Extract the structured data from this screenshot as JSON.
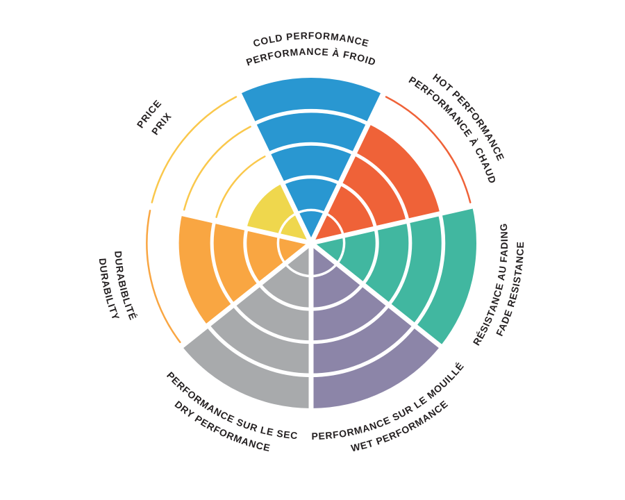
{
  "page": {
    "background": "#FFFFFF"
  },
  "chart_data": {
    "type": "radial-wheel",
    "description": "Seven-segment circular performance rating wheel, each segment filled 0-5 rings, bilingual curved labels",
    "rings": 5,
    "ring_outline_for_unfilled": true,
    "separator_color": "#FFFFFF",
    "text_color": "#231F20",
    "segments_clockwise_from_top": [
      {
        "id": "cold-performance",
        "label_en": "COLD PERFORMANCE",
        "label_fr": "PERFORMANCE À FROID",
        "value": 5,
        "fill": "#2997D1"
      },
      {
        "id": "hot-performance",
        "label_en": "HOT PERFORMANCE",
        "label_fr": "PERFORMANCE À CHAUD",
        "value": 4,
        "fill": "#EF6238"
      },
      {
        "id": "fade-resistance",
        "label_en": "FADE RESISTANCE",
        "label_fr": "RÉSISTANCE AU FADING",
        "value": 5,
        "fill": "#41B7A0"
      },
      {
        "id": "wet-performance",
        "label_en": "WET PERFORMANCE",
        "label_fr": "PERFORMANCE SUR LE MOUILLÉ",
        "value": 5,
        "fill": "#8C85A8"
      },
      {
        "id": "dry-performance",
        "label_en": "DRY PERFORMANCE",
        "label_fr": "PERFORMANCE SUR LE SEC",
        "value": 5,
        "fill": "#A8AAAC"
      },
      {
        "id": "durability",
        "label_en": "DURABILITY",
        "label_fr": "DURABIBLITÉ",
        "value": 4,
        "fill": "#F9A642"
      },
      {
        "id": "price",
        "label_en": "PRICE",
        "label_fr": "PRIX",
        "value": 2,
        "fill": "#EFD74D",
        "arc_color": "#FAC84C"
      }
    ]
  }
}
